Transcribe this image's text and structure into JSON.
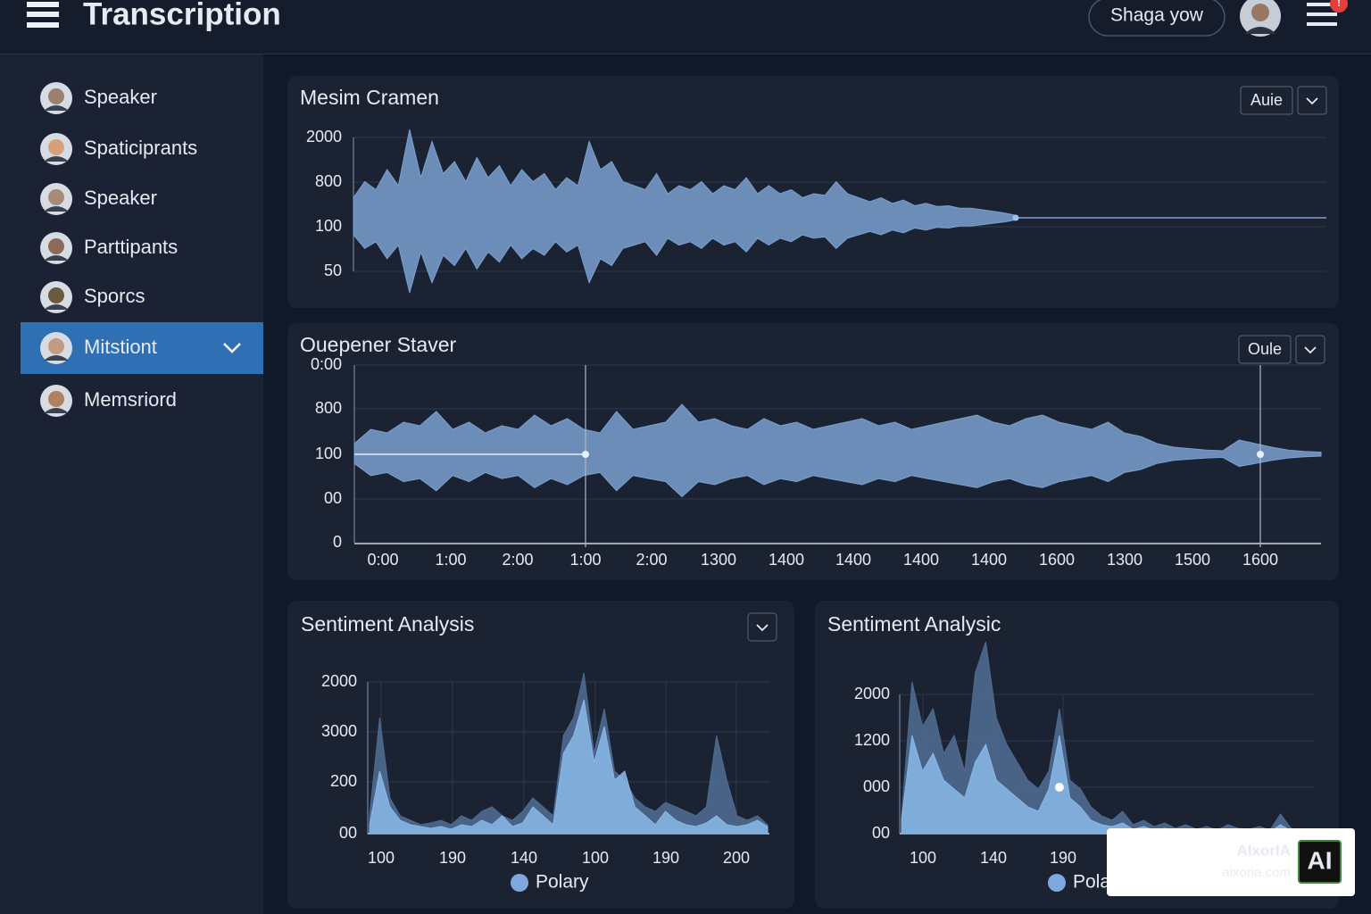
{
  "header": {
    "title": "Transcription",
    "search": "Shaga yow",
    "badge": "!"
  },
  "sidebar": {
    "active": 5,
    "items": [
      {
        "label": "Speaker"
      },
      {
        "label": "Spaticiprants"
      },
      {
        "label": "Speaker"
      },
      {
        "label": "Parttipants",
        "color": "#8db3e2"
      },
      {
        "label": "Sporcs"
      },
      {
        "label": "Mitstiont"
      },
      {
        "label": "Memsriord"
      }
    ]
  },
  "panels": [
    {
      "title": "Mesim Cramen",
      "button": "Auie",
      "y_labels": [
        "2000",
        "800",
        "100",
        "50"
      ],
      "color": "#7aa0cf",
      "wave": [
        25,
        45,
        35,
        60,
        40,
        110,
        50,
        95,
        55,
        70,
        45,
        75,
        50,
        65,
        40,
        60,
        45,
        55,
        35,
        50,
        40,
        95,
        60,
        70,
        45,
        40,
        35,
        55,
        30,
        40,
        35,
        45,
        30,
        40,
        35,
        50,
        30,
        40,
        30,
        35,
        25,
        30,
        28,
        45,
        30,
        25,
        20,
        25,
        18,
        22,
        15,
        18,
        14,
        15,
        12,
        12,
        10,
        8,
        6,
        3
      ]
    },
    {
      "title": "Ouepener Staver",
      "button": "Oule",
      "y_labels": [
        "0:00",
        "800",
        "100",
        "00",
        "0"
      ],
      "x_labels": [
        "0:00",
        "1:00",
        "2:00",
        "1:00",
        "2:00",
        "1300",
        "1400",
        "1400",
        "1400",
        "1400",
        "1600",
        "1300",
        "1500",
        "1600"
      ],
      "color": "#7aa0cf",
      "wave": [
        15,
        35,
        30,
        45,
        40,
        60,
        35,
        45,
        30,
        40,
        35,
        55,
        40,
        50,
        35,
        30,
        60,
        35,
        40,
        45,
        70,
        45,
        50,
        40,
        35,
        50,
        40,
        45,
        35,
        40,
        45,
        50,
        40,
        45,
        35,
        40,
        45,
        50,
        55,
        45,
        40,
        50,
        55,
        45,
        40,
        35,
        45,
        30,
        25,
        15,
        10,
        8,
        6,
        5,
        20,
        15,
        10,
        6,
        4,
        3
      ]
    },
    {
      "title": "Sentiment Analysis",
      "y_labels": [
        "2000",
        "3000",
        "200",
        "00"
      ],
      "x_labels": [
        "100",
        "190",
        "140",
        "100",
        "190",
        "200"
      ],
      "legend": "Polary",
      "series": [
        {
          "color": "#4f6a90",
          "values": [
            20,
            130,
            40,
            20,
            15,
            10,
            12,
            15,
            10,
            20,
            15,
            25,
            30,
            20,
            15,
            25,
            40,
            30,
            20,
            110,
            130,
            180,
            90,
            140,
            70,
            60,
            40,
            30,
            25,
            35,
            30,
            25,
            20,
            30,
            110,
            60,
            20,
            15,
            20,
            10
          ]
        },
        {
          "color": "#8ab8e8",
          "values": [
            10,
            70,
            30,
            15,
            10,
            8,
            6,
            8,
            5,
            10,
            8,
            15,
            10,
            20,
            8,
            12,
            30,
            20,
            10,
            90,
            110,
            150,
            80,
            120,
            60,
            70,
            30,
            20,
            10,
            25,
            15,
            10,
            8,
            12,
            20,
            10,
            8,
            10,
            15,
            8
          ]
        }
      ]
    },
    {
      "title": "Sentiment Analysic",
      "y_labels": [
        "2000",
        "1200",
        "000",
        "00"
      ],
      "x_labels": [
        "100",
        "140",
        "190"
      ],
      "legend": "Polary",
      "series": [
        {
          "color": "#4f6a90",
          "values": [
            20,
            170,
            120,
            140,
            90,
            110,
            70,
            180,
            215,
            130,
            100,
            80,
            60,
            50,
            70,
            140,
            60,
            50,
            30,
            20,
            15,
            25,
            10,
            15,
            8,
            12,
            6,
            10,
            5,
            8,
            4,
            10,
            6,
            5,
            8,
            4,
            22,
            6,
            4,
            3
          ]
        },
        {
          "color": "#8ab8e8",
          "values": [
            15,
            110,
            70,
            90,
            60,
            50,
            40,
            80,
            100,
            60,
            50,
            40,
            30,
            25,
            50,
            110,
            40,
            30,
            15,
            10,
            8,
            12,
            5,
            8,
            4,
            6,
            3,
            5,
            2,
            4,
            2,
            5,
            3,
            2,
            4,
            2,
            10,
            3,
            2,
            2
          ]
        }
      ]
    }
  ],
  "watermark": {
    "name": "AlxorlA",
    "url": "aixoria.com",
    "logo": "AI"
  }
}
